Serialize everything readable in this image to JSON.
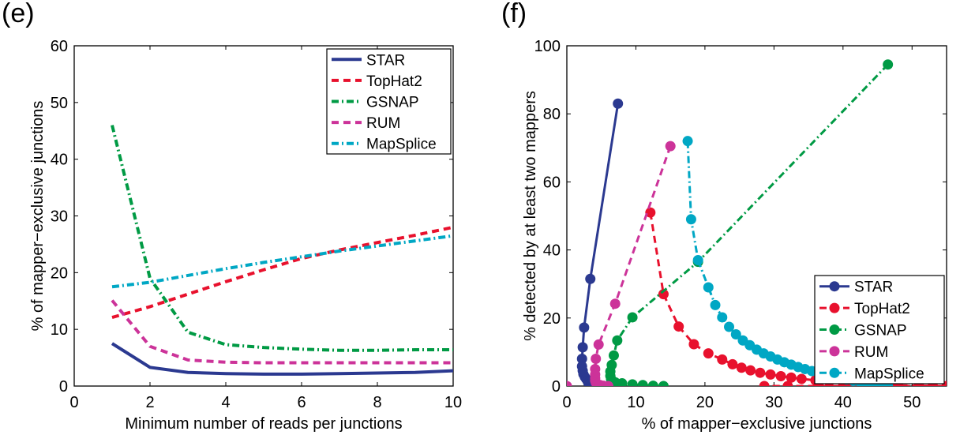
{
  "panels": [
    {
      "label": "(e)"
    },
    {
      "label": "(f)"
    }
  ],
  "chart_data": [
    {
      "type": "line",
      "panel": "(e)",
      "title": "",
      "xlabel": "Minimum number of reads per junctions",
      "ylabel": "% of mapper−exclusive junctions",
      "xlim": [
        0,
        10
      ],
      "ylim": [
        0,
        60
      ],
      "xticks": [
        0,
        2,
        4,
        6,
        8,
        10
      ],
      "yticks": [
        0,
        10,
        20,
        30,
        40,
        50,
        60
      ],
      "grid": false,
      "legend_position": "top-right",
      "x": [
        1,
        2,
        3,
        4,
        5,
        6,
        7,
        8,
        9,
        10
      ],
      "series": [
        {
          "name": "STAR",
          "color": "#2b3990",
          "dash": "solid",
          "values": [
            7.5,
            3.3,
            2.4,
            2.2,
            2.1,
            2.1,
            2.2,
            2.3,
            2.4,
            2.7
          ]
        },
        {
          "name": "TopHat2",
          "color": "#e8112d",
          "dash": "dash",
          "values": [
            12.1,
            14.0,
            16.2,
            18.4,
            20.5,
            22.5,
            24.0,
            25.3,
            26.6,
            28.0
          ]
        },
        {
          "name": "GSNAP",
          "color": "#009a44",
          "dash": "dashdot",
          "values": [
            46.0,
            19.0,
            9.5,
            7.3,
            6.8,
            6.5,
            6.3,
            6.3,
            6.4,
            6.4
          ]
        },
        {
          "name": "RUM",
          "color": "#cc3399",
          "dash": "dash",
          "values": [
            15.1,
            7.0,
            4.6,
            4.2,
            4.1,
            4.1,
            4.1,
            4.1,
            4.1,
            4.1
          ]
        },
        {
          "name": "MapSplice",
          "color": "#00a7c4",
          "dash": "dashdot",
          "values": [
            17.5,
            18.3,
            19.5,
            20.7,
            21.8,
            22.8,
            23.8,
            24.7,
            25.6,
            26.5
          ]
        }
      ]
    },
    {
      "type": "scatter",
      "panel": "(f)",
      "title": "",
      "xlabel": "% of mapper−exclusive junctions",
      "ylabel": "% detected by at least two mappers",
      "xlim": [
        0,
        55
      ],
      "ylim": [
        0,
        100
      ],
      "xticks": [
        0,
        10,
        20,
        30,
        40,
        50
      ],
      "yticks": [
        0,
        20,
        40,
        60,
        80,
        100
      ],
      "grid": false,
      "legend_position": "bottom-right",
      "series": [
        {
          "name": "STAR",
          "color": "#2b3990",
          "dash": "solid",
          "x": [
            7.4,
            3.4,
            2.5,
            2.3,
            2.2,
            2.2,
            2.3,
            2.4,
            2.6,
            2.8,
            3.0,
            3.1,
            3.3,
            3.5
          ],
          "y": [
            83.0,
            31.5,
            17.2,
            11.4,
            8.0,
            5.8,
            4.5,
            3.5,
            2.7,
            2.1,
            1.5,
            1.0,
            0.6,
            0.3
          ]
        },
        {
          "name": "TopHat2",
          "color": "#e8112d",
          "dash": "dash",
          "x": [
            12.1,
            14.0,
            16.2,
            18.4,
            20.5,
            22.5,
            24.0,
            25.3,
            26.6,
            28.0,
            29.5,
            31.0,
            32.5,
            34.0,
            36.0,
            38.0,
            40.0,
            42.0,
            45.0,
            48.0,
            51.0,
            53.0,
            55.0,
            28.6,
            32.0,
            36.5,
            41.0
          ],
          "y": [
            51.0,
            27.0,
            17.5,
            12.3,
            9.6,
            7.8,
            6.4,
            5.4,
            4.6,
            3.9,
            3.4,
            2.9,
            2.5,
            2.1,
            1.7,
            1.3,
            1.0,
            0.7,
            0.4,
            0.2,
            0.1,
            0.05,
            0.0,
            0.0,
            0.0,
            0.0,
            0.0
          ]
        },
        {
          "name": "GSNAP",
          "color": "#009a44",
          "dash": "dashdot",
          "x": [
            46.5,
            19.0,
            9.5,
            7.3,
            6.8,
            6.5,
            6.3,
            6.3,
            6.4,
            6.5,
            7.0,
            8.0,
            9.5,
            11.0,
            12.5,
            14.0
          ],
          "y": [
            94.5,
            36.5,
            20.2,
            13.4,
            9.0,
            6.2,
            4.3,
            3.0,
            2.1,
            1.5,
            1.1,
            0.8,
            0.5,
            0.3,
            0.1,
            0.0
          ]
        },
        {
          "name": "RUM",
          "color": "#cc3399",
          "dash": "dash",
          "x": [
            15.0,
            7.0,
            4.6,
            4.2,
            4.1,
            4.1,
            4.1,
            4.1,
            4.2,
            4.4,
            4.8,
            5.3,
            6.0
          ],
          "y": [
            70.5,
            24.2,
            12.2,
            8.0,
            5.0,
            3.4,
            2.3,
            1.6,
            1.0,
            0.6,
            0.3,
            0.1,
            0.0
          ]
        },
        {
          "name": "MapSplice",
          "color": "#00a7c4",
          "dash": "dashdot",
          "x": [
            17.5,
            18.0,
            19.0,
            20.5,
            21.5,
            22.5,
            23.5,
            24.5,
            25.5,
            26.5,
            27.5,
            28.5,
            29.5,
            30.5,
            31.5,
            32.5,
            33.5,
            34.5,
            35.5,
            36.5,
            37.5,
            38.5,
            39.5,
            40.5,
            41.5,
            42.5,
            43.5,
            44.5,
            45.5,
            46.5
          ],
          "y": [
            72.0,
            49.0,
            37.0,
            29.0,
            23.8,
            20.2,
            17.4,
            15.2,
            13.4,
            12.0,
            10.7,
            9.6,
            8.7,
            7.8,
            7.0,
            6.3,
            5.6,
            5.0,
            4.4,
            3.8,
            3.3,
            2.8,
            2.3,
            1.9,
            1.5,
            1.1,
            0.8,
            0.5,
            0.2,
            0.0
          ]
        }
      ]
    }
  ]
}
